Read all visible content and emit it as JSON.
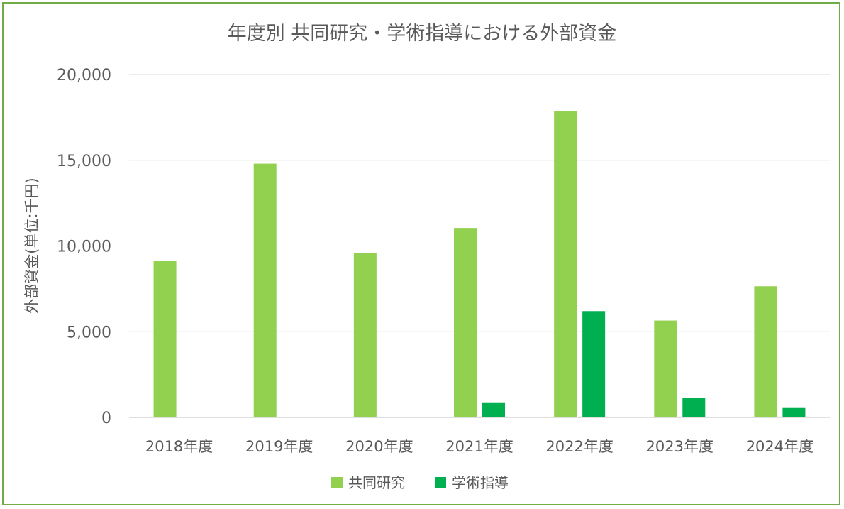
{
  "chart_data": {
    "type": "bar",
    "title": "年度別 共同研究・学術指導における外部資金",
    "xlabel": "",
    "ylabel": "外部資金(単位:千円)",
    "ylim": [
      0,
      20000
    ],
    "yticks": [
      0,
      5000,
      10000,
      15000,
      20000
    ],
    "ytick_labels": [
      "0",
      "5,000",
      "10,000",
      "15,000",
      "20,000"
    ],
    "categories": [
      "2018年度",
      "2019年度",
      "2020年度",
      "2021年度",
      "2022年度",
      "2023年度",
      "2024年度"
    ],
    "series": [
      {
        "name": "共同研究",
        "color": "#92D050",
        "values": [
          9150,
          14800,
          9600,
          11050,
          17850,
          5650,
          7650
        ]
      },
      {
        "name": "学術指導",
        "color": "#00B050",
        "values": [
          0,
          0,
          0,
          880,
          6200,
          1120,
          550
        ]
      }
    ],
    "grid": true,
    "legend": "bottom"
  }
}
